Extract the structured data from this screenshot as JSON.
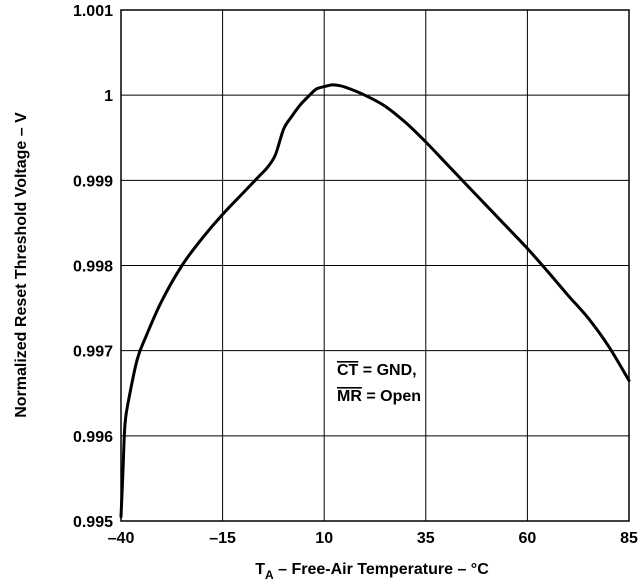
{
  "chart_data": {
    "type": "line",
    "xlabel": {
      "main": "T",
      "sub": "A",
      "rest": " – Free-Air Temperature – °C"
    },
    "ylabel": "Normalized Reset Threshold Voltage – V",
    "xlim": [
      -40,
      85
    ],
    "ylim": [
      0.995,
      1.001
    ],
    "x_ticks": [
      -40,
      -15,
      10,
      35,
      60,
      85
    ],
    "x_tick_labels": [
      "–40",
      "–15",
      "10",
      "35",
      "60",
      "85"
    ],
    "y_ticks": [
      0.995,
      0.996,
      0.997,
      0.998,
      0.999,
      1.0,
      1.001
    ],
    "y_tick_labels": [
      "0.995",
      "0.996",
      "0.997",
      "0.998",
      "0.999",
      "1",
      "1.001"
    ],
    "grid": true,
    "annotation": {
      "line1_overlined": "CT",
      "line1_rest": " = GND,",
      "line2_overlined": "MR",
      "line2_rest": " = Open"
    },
    "series": [
      {
        "x": [
          -40,
          -39.5,
          -39,
          -38,
          -36,
          -34,
          -30,
          -25,
          -20,
          -15,
          -10,
          -6,
          -4,
          -2,
          0,
          2,
          4,
          6,
          8,
          10,
          12,
          14,
          16,
          20,
          25,
          30,
          35,
          40,
          45,
          50,
          55,
          60,
          65,
          70,
          75,
          80,
          85
        ],
        "y": [
          0.99505,
          0.9956,
          0.99615,
          0.99645,
          0.9969,
          0.99715,
          0.99758,
          0.998,
          0.99832,
          0.9986,
          0.99885,
          0.99905,
          0.99915,
          0.9993,
          0.9996,
          0.99975,
          0.99988,
          0.99998,
          1.00007,
          1.0001,
          1.00012,
          1.00011,
          1.00008,
          1.0,
          0.99987,
          0.99968,
          0.99945,
          0.9992,
          0.99895,
          0.9987,
          0.99845,
          0.9982,
          0.99793,
          0.99765,
          0.99738,
          0.99705,
          0.99665
        ]
      }
    ]
  }
}
